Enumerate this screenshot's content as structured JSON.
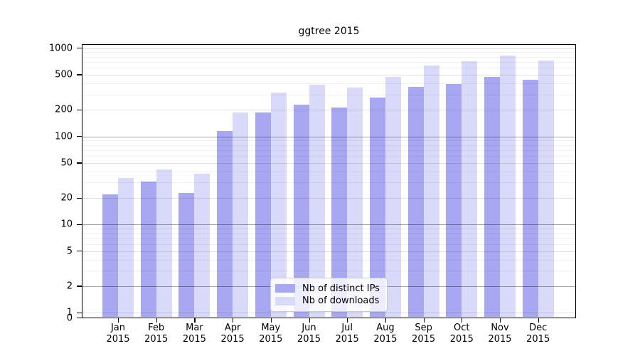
{
  "chart_data": {
    "type": "bar",
    "title": "ggtree 2015",
    "xlabel": "",
    "ylabel": "",
    "yscale": "log",
    "categories": [
      "Jan 2015",
      "Feb 2015",
      "Mar 2015",
      "Apr 2015",
      "May 2015",
      "Jun 2015",
      "Jul 2015",
      "Aug 2015",
      "Sep 2015",
      "Oct 2015",
      "Nov 2015",
      "Dec 2015"
    ],
    "series": [
      {
        "name": "Nb of distinct IPs",
        "color": "#a7a7f2",
        "values": [
          22,
          31,
          23,
          115,
          188,
          231,
          214,
          276,
          366,
          391,
          477,
          437
        ]
      },
      {
        "name": "Nb of downloads",
        "color": "#d9d9fa",
        "values": [
          34,
          42,
          38,
          186,
          316,
          386,
          358,
          470,
          637,
          713,
          833,
          724
        ]
      }
    ],
    "ytick_labels": [
      "1000",
      "500",
      "200",
      "100",
      "50",
      "20",
      "10",
      "5",
      "2",
      "1",
      "0"
    ],
    "ytick_values": [
      1000,
      500,
      200,
      100,
      50,
      20,
      10,
      5,
      2,
      1,
      0
    ],
    "ylim": [
      0,
      1120
    ],
    "grid": {
      "on": true,
      "dark_lines_at": [
        2,
        10,
        100
      ],
      "labeled_lines_at": [
        1,
        5,
        20,
        50,
        200,
        500,
        1000
      ],
      "minor_lines_at": [
        3,
        4,
        6,
        7,
        8,
        9,
        30,
        40,
        60,
        70,
        80,
        90,
        300,
        400,
        600,
        700,
        800,
        900
      ]
    },
    "colors": {
      "frame": "#000000",
      "grid_dark": "rgba(0,0,0,0.35)",
      "grid_labeled": "rgba(0,0,0,0.115)",
      "grid_minor": "rgba(0,0,0,0.06)"
    },
    "legend": {
      "position": "inside-bottom-center"
    }
  }
}
